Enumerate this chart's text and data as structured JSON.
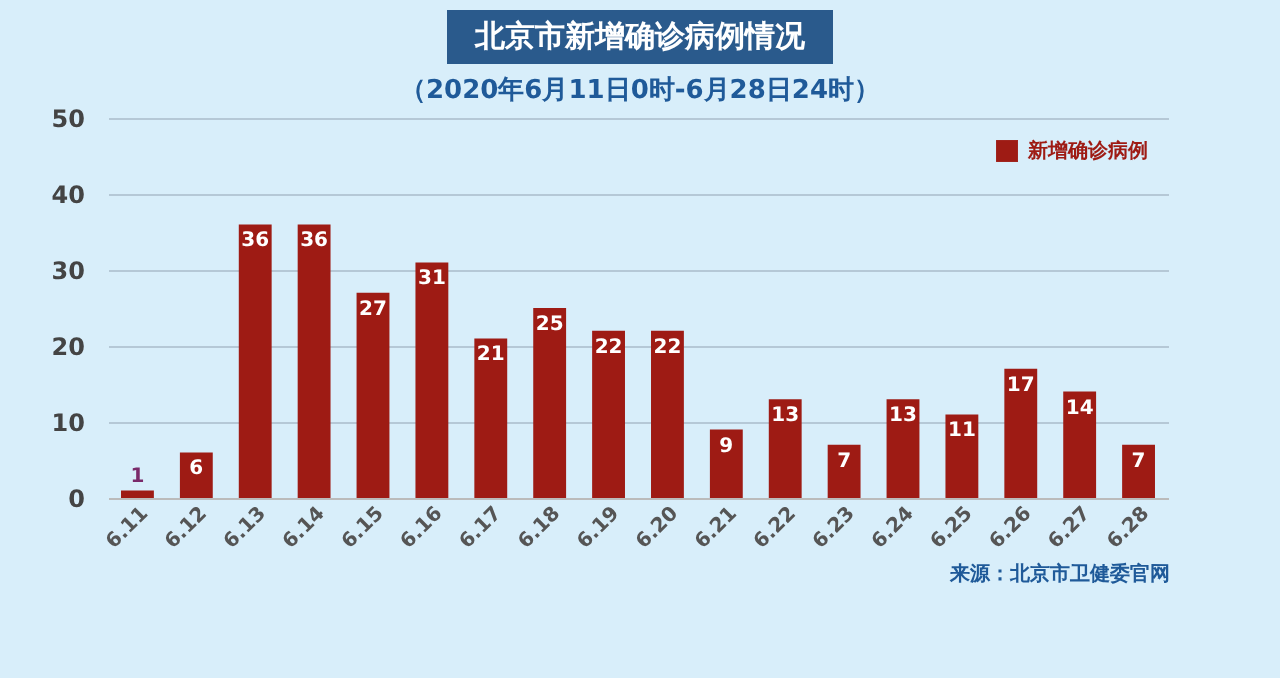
{
  "chart_data": {
    "type": "bar",
    "title": "北京市新增确诊病例情况",
    "subtitle": "（2020年6月11日0时-6月28日24时）",
    "categories": [
      "6.11",
      "6.12",
      "6.13",
      "6.14",
      "6.15",
      "6.16",
      "6.17",
      "6.18",
      "6.19",
      "6.20",
      "6.21",
      "6.22",
      "6.23",
      "6.24",
      "6.25",
      "6.26",
      "6.27",
      "6.28"
    ],
    "series": [
      {
        "name": "新增确诊病例",
        "color": "#9e1b14",
        "values": [
          1,
          6,
          36,
          36,
          27,
          31,
          21,
          25,
          22,
          22,
          9,
          13,
          7,
          13,
          11,
          17,
          14,
          7
        ]
      }
    ],
    "ylim": [
      0,
      50
    ],
    "yticks": [
      0,
      10,
      20,
      30,
      40,
      50
    ],
    "grid": "y",
    "legend": "top right",
    "data_labels": true,
    "annotations": [
      "来源：北京市卫健委官网"
    ]
  }
}
